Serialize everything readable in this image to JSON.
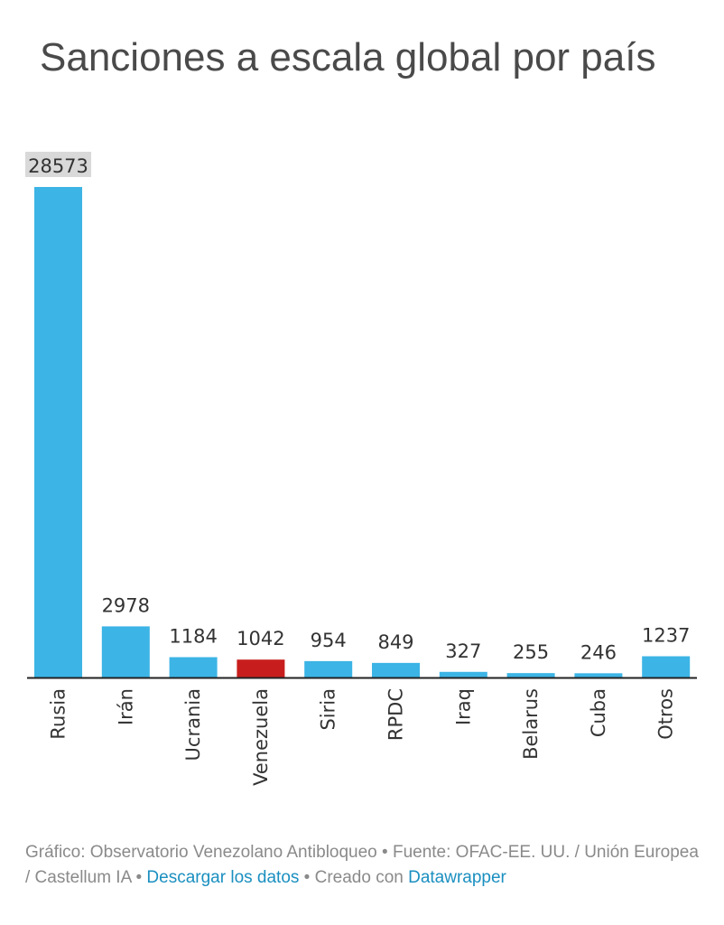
{
  "chart_data": {
    "type": "bar",
    "title": "Sanciones a escala global por país",
    "categories": [
      "Rusia",
      "Irán",
      "Ucrania",
      "Venezuela",
      "Siria",
      "RPDC",
      "Iraq",
      "Belarus",
      "Cuba",
      "Otros"
    ],
    "values": [
      28573,
      2978,
      1184,
      1042,
      954,
      849,
      327,
      255,
      246,
      1237
    ],
    "highlight_category": "Venezuela",
    "xlabel": "",
    "ylabel": "",
    "ylim": [
      0,
      28573
    ],
    "grid": false,
    "legend": "none",
    "colors": {
      "bar": "#3cb4e5",
      "highlight": "#c71e1d",
      "top_label_bg": "#d9d9d9"
    }
  },
  "footer": {
    "credit": "Gráfico: Observatorio Venezolano Antibloqueo • Fuente: OFAC-EE. UU. / Unión Europea / Castellum IA • ",
    "download_link": "Descargar los datos",
    "created_with": " • Creado con ",
    "datawrapper_link": "Datawrapper"
  }
}
